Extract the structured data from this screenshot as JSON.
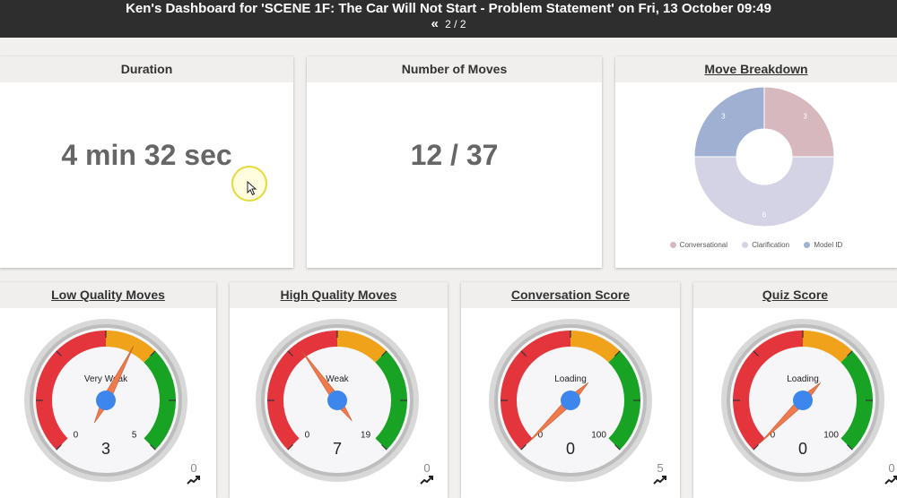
{
  "header": {
    "title": "Ken's Dashboard for 'SCENE 1F: The Car Will Not Start - Problem Statement' on Fri, 13 October 09:49",
    "pager_icon": "«",
    "pager": "2 / 2"
  },
  "duration": {
    "title": "Duration",
    "value": "4 min 32 sec"
  },
  "moves": {
    "title": "Number of Moves",
    "value": "12 / 37"
  },
  "breakdown": {
    "title": "Move Breakdown",
    "chart_data": {
      "type": "pie",
      "categories": [
        "Conversational",
        "Clarification",
        "Model ID"
      ],
      "values": [
        3,
        6,
        3
      ],
      "colors": [
        "#d7b8bf",
        "#d4d3e5",
        "#9fb0d2"
      ]
    }
  },
  "gauges": [
    {
      "title": "Low Quality Moves",
      "label": "Very Weak",
      "min": "0",
      "max": "5",
      "value": 3,
      "value_text": "3",
      "trend": "0"
    },
    {
      "title": "High Quality Moves",
      "label": "Weak",
      "min": "0",
      "max": "19",
      "value": 7,
      "value_text": "7",
      "trend": "0"
    },
    {
      "title": "Conversation Score",
      "label": "Loading",
      "min": "0",
      "max": "100",
      "value": 0,
      "value_text": "0",
      "trend": "5"
    },
    {
      "title": "Quiz Score",
      "label": "Loading",
      "min": "0",
      "max": "100",
      "value": 0,
      "value_text": "0",
      "trend": "0"
    }
  ],
  "colors": {
    "red": "#e4353d",
    "orange": "#f0a21a",
    "green": "#18a324",
    "needle": "#ef7a4c",
    "hub": "#3d86ee"
  }
}
